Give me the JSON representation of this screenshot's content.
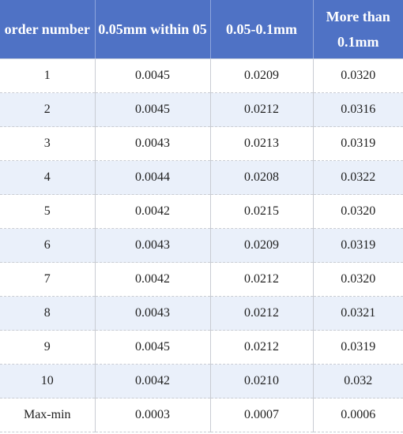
{
  "table": {
    "headers": [
      "order number",
      "0.05mm within 05",
      "0.05-0.1mm",
      "More than 0.1mm"
    ],
    "rows": [
      [
        "1",
        "0.0045",
        "0.0209",
        "0.0320"
      ],
      [
        "2",
        "0.0045",
        "0.0212",
        "0.0316"
      ],
      [
        "3",
        "0.0043",
        "0.0213",
        "0.0319"
      ],
      [
        "4",
        "0.0044",
        "0.0208",
        "0.0322"
      ],
      [
        "5",
        "0.0042",
        "0.0215",
        "0.0320"
      ],
      [
        "6",
        "0.0043",
        "0.0209",
        "0.0319"
      ],
      [
        "7",
        "0.0042",
        "0.0212",
        "0.0320"
      ],
      [
        "8",
        "0.0043",
        "0.0212",
        "0.0321"
      ],
      [
        "9",
        "0.0045",
        "0.0212",
        "0.0319"
      ],
      [
        "10",
        "0.0042",
        "0.0210",
        "0.032"
      ],
      [
        "Max-min",
        "0.0003",
        "0.0007",
        "0.0006"
      ]
    ]
  },
  "colors": {
    "header_bg": "#4f72c5",
    "header_text": "#ffffff",
    "stripe_bg": "#eaf0fa"
  }
}
